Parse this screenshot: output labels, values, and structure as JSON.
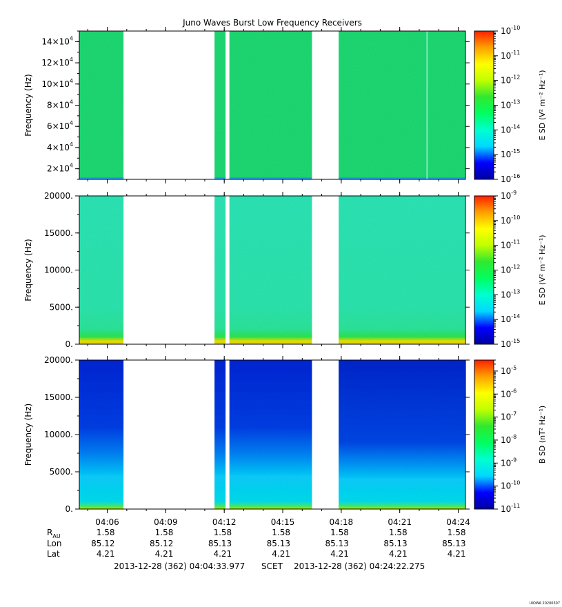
{
  "title": "Juno Waves Burst Low Frequency Receivers",
  "colors": {
    "colormap": [
      "#0000a0",
      "#0000ff",
      "#00d8ff",
      "#00ffd0",
      "#00ff60",
      "#30e830",
      "#c0ff00",
      "#ffff00",
      "#ffa000",
      "#ff2000"
    ],
    "gap": "#ffffff",
    "panel1_fill": "#23dc74",
    "panel2_fill": "#2ee8b0",
    "panel3_top": "#0a2ee0",
    "panel3_mid": "#0a6ef0",
    "panel3_bottom": "#10d8ff",
    "bottom_band": "#c8e000"
  },
  "chart_data": [
    {
      "type": "heatmap",
      "panel": 1,
      "title": "Juno Waves Burst Low Frequency Receivers",
      "ylabel": "Frequency (Hz)",
      "ylim": [
        10000,
        150000
      ],
      "yticks": [
        {
          "value": 20000,
          "mantissa": "2×10",
          "exp": "4"
        },
        {
          "value": 40000,
          "mantissa": "4×10",
          "exp": "4"
        },
        {
          "value": 60000,
          "mantissa": "6×10",
          "exp": "4"
        },
        {
          "value": 80000,
          "mantissa": "8×10",
          "exp": "4"
        },
        {
          "value": 100000,
          "mantissa": "10×10",
          "exp": "4"
        },
        {
          "value": 120000,
          "mantissa": "12×10",
          "exp": "4"
        },
        {
          "value": 140000,
          "mantissa": "14×10",
          "exp": "4"
        }
      ],
      "colorbar_label": "E SD (V² m⁻² Hz⁻¹)",
      "colorbar_ticks": [
        {
          "value": 1e-16,
          "exp": "-16"
        },
        {
          "value": 1e-15,
          "exp": "-15"
        },
        {
          "value": 1e-14,
          "exp": "-14"
        },
        {
          "value": 1e-13,
          "exp": "-13"
        },
        {
          "value": 1e-12,
          "exp": "-12"
        },
        {
          "value": 1e-11,
          "exp": "-11"
        },
        {
          "value": 1e-10,
          "exp": "-10"
        }
      ],
      "colorbar_range": [
        1e-16,
        1e-10
      ],
      "colorbar_log": true,
      "typical_value": 3e-14
    },
    {
      "type": "heatmap",
      "panel": 2,
      "ylabel": "Frequency (Hz)",
      "ylim": [
        0,
        20000
      ],
      "yticks": [
        {
          "value": 0,
          "label": "0."
        },
        {
          "value": 5000,
          "label": "5000."
        },
        {
          "value": 10000,
          "label": "10000."
        },
        {
          "value": 15000,
          "label": "15000."
        },
        {
          "value": 20000,
          "label": "20000."
        }
      ],
      "colorbar_label": "E SD (V² m⁻² Hz⁻¹)",
      "colorbar_ticks": [
        {
          "value": 1e-15,
          "exp": "-15"
        },
        {
          "value": 1e-14,
          "exp": "-14"
        },
        {
          "value": 1e-13,
          "exp": "-13"
        },
        {
          "value": 1e-12,
          "exp": "-12"
        },
        {
          "value": 1e-11,
          "exp": "-11"
        },
        {
          "value": 1e-10,
          "exp": "-10"
        },
        {
          "value": 1e-09,
          "exp": "-9"
        }
      ],
      "colorbar_range": [
        1e-15,
        1e-09
      ],
      "colorbar_log": true,
      "typical_value": 5e-14
    },
    {
      "type": "heatmap",
      "panel": 3,
      "ylabel": "Frequency (Hz)",
      "ylim": [
        0,
        20000
      ],
      "yticks": [
        {
          "value": 0,
          "label": "0."
        },
        {
          "value": 5000,
          "label": "5000."
        },
        {
          "value": 10000,
          "label": "10000."
        },
        {
          "value": 15000,
          "label": "15000."
        },
        {
          "value": 20000,
          "label": "20000."
        }
      ],
      "colorbar_label": "B SD (nT² Hz⁻¹)",
      "colorbar_ticks": [
        {
          "value": 1e-11,
          "exp": "-11"
        },
        {
          "value": 1e-10,
          "exp": "-10"
        },
        {
          "value": 1e-09,
          "exp": "-9"
        },
        {
          "value": 1e-08,
          "exp": "-8"
        },
        {
          "value": 1e-07,
          "exp": "-7"
        },
        {
          "value": 1e-06,
          "exp": "-6"
        },
        {
          "value": 1e-05,
          "exp": "-5"
        }
      ],
      "colorbar_range": [
        1e-11,
        3e-05
      ],
      "colorbar_log": true,
      "typical_value": 1e-10
    }
  ],
  "time_axis": {
    "start_seconds": 14673.977,
    "end_seconds": 15862.275,
    "tick_labels": [
      "04:06",
      "04:09",
      "04:12",
      "04:15",
      "04:18",
      "04:21",
      "04:24"
    ],
    "tick_seconds": [
      14760,
      14940,
      15120,
      15300,
      15480,
      15660,
      15840
    ],
    "data_intervals": [
      [
        14673.977,
        14810
      ],
      [
        15090,
        15124
      ],
      [
        15136,
        15390
      ],
      [
        15472,
        15862.275
      ]
    ],
    "panel1_vertical_line": 15744
  },
  "ephemeris": {
    "row_labels": {
      "rau_main": "R",
      "rau_sub": "AU",
      "lon": "Lon",
      "lat": "Lat"
    },
    "rau": [
      "1.58",
      "1.58",
      "1.58",
      "1.58",
      "1.58",
      "1.58",
      "1.58"
    ],
    "lon": [
      "85.12",
      "85.12",
      "85.13",
      "85.13",
      "85.13",
      "85.13",
      "85.13"
    ],
    "lat": [
      "4.21",
      "4.21",
      "4.21",
      "4.21",
      "4.21",
      "4.21",
      "4.21"
    ]
  },
  "footer": {
    "start": "2013-12-28 (362) 04:04:33.977",
    "frame": "SCET",
    "end": "2013-12-28 (362) 04:24:22.275"
  },
  "corner_tag": "UIOWA 20200307"
}
